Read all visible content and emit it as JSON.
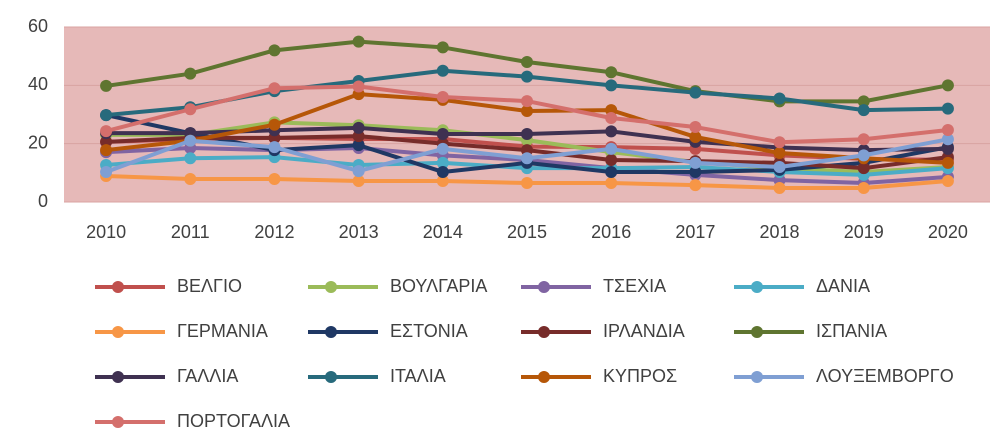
{
  "chart_data": {
    "type": "line",
    "categories": [
      "2010",
      "2011",
      "2012",
      "2013",
      "2014",
      "2015",
      "2016",
      "2017",
      "2018",
      "2019",
      "2020"
    ],
    "ylim": [
      0,
      60
    ],
    "yticks": [
      0,
      20,
      40,
      60
    ],
    "grid": true,
    "legend": "bottom",
    "series": [
      {
        "name": "ΒΕΛΓΙΟ",
        "color": "#c0504d",
        "values": [
          20.6,
          21.6,
          22,
          21.6,
          21.6,
          19,
          18.8,
          18.2,
          16,
          14.8,
          14.4
        ]
      },
      {
        "name": "ΒΟΥΛΓΑΡΙΑ",
        "color": "#9bbb59",
        "values": [
          23,
          23,
          27.3,
          26.3,
          24.6,
          21.2,
          17.1,
          13.7,
          11.6,
          10.3,
          12
        ]
      },
      {
        "name": "ΤΣΕΧΙΑ",
        "color": "#8064a2",
        "values": [
          17.1,
          18.5,
          17.8,
          18.5,
          16,
          14.4,
          11.6,
          9.3,
          7.5,
          6.5,
          8.6
        ]
      },
      {
        "name": "ΔΑΝΙΑ",
        "color": "#4bacc6",
        "values": [
          12.7,
          15,
          15.4,
          12.7,
          13.4,
          11.6,
          11.6,
          12,
          10.3,
          9.3,
          11.6
        ]
      },
      {
        "name": "ΓΕΡΜΑΝΙΑ",
        "color": "#f79646",
        "values": [
          8.9,
          7.9,
          7.9,
          7.2,
          7.2,
          6.5,
          6.5,
          5.8,
          4.8,
          4.8,
          7.2
        ]
      },
      {
        "name": "ΕΣΤΟΝΙΑ",
        "color": "#1f3864",
        "values": [
          29.8,
          23.6,
          17.8,
          19.5,
          10.3,
          13.4,
          10.3,
          10.3,
          11,
          13.4,
          18.8
        ]
      },
      {
        "name": "ΙΡΛΑΝΔΙΑ",
        "color": "#772c2a",
        "values": [
          20.6,
          22,
          22,
          22.6,
          20,
          17.8,
          14.4,
          14,
          13.4,
          11.6,
          15.4
        ]
      },
      {
        "name": "ΙΣΠΑΝΙΑ",
        "color": "#5f7530",
        "values": [
          39.8,
          44,
          52,
          55,
          53,
          48,
          44.5,
          38,
          34.5,
          34.5,
          40
        ]
      },
      {
        "name": "ΓΑΛΛΙΑ",
        "color": "#3f3151",
        "values": [
          23.6,
          23.6,
          24.6,
          25.4,
          23.3,
          23.3,
          24.2,
          20.6,
          18.7,
          17.8,
          18.2
        ]
      },
      {
        "name": "ΙΤΑΛΙΑ",
        "color": "#276a7c",
        "values": [
          29.8,
          32.5,
          38,
          41.5,
          45,
          43,
          40,
          37.5,
          35.5,
          31.5,
          32
        ]
      },
      {
        "name": "ΚΥΠΡΟΣ",
        "color": "#b65708",
        "values": [
          17.8,
          21,
          26.5,
          37,
          35,
          31.2,
          31.5,
          22.3,
          16.8,
          15,
          13.4
        ]
      },
      {
        "name": "ΛΟΥΞΕΜΒΟΡΓΟ",
        "color": "#7f9fd3",
        "values": [
          10.3,
          21,
          18.8,
          10.6,
          18.2,
          15,
          18.2,
          13.4,
          12,
          16,
          21.5
        ]
      },
      {
        "name": "ΠΟΡΤΟΓΑΛΙΑ",
        "color": "#d46f6c",
        "values": [
          24.3,
          31.8,
          39,
          39.6,
          36,
          34.6,
          28.8,
          25.7,
          20.5,
          21.5,
          24.7
        ]
      }
    ]
  }
}
